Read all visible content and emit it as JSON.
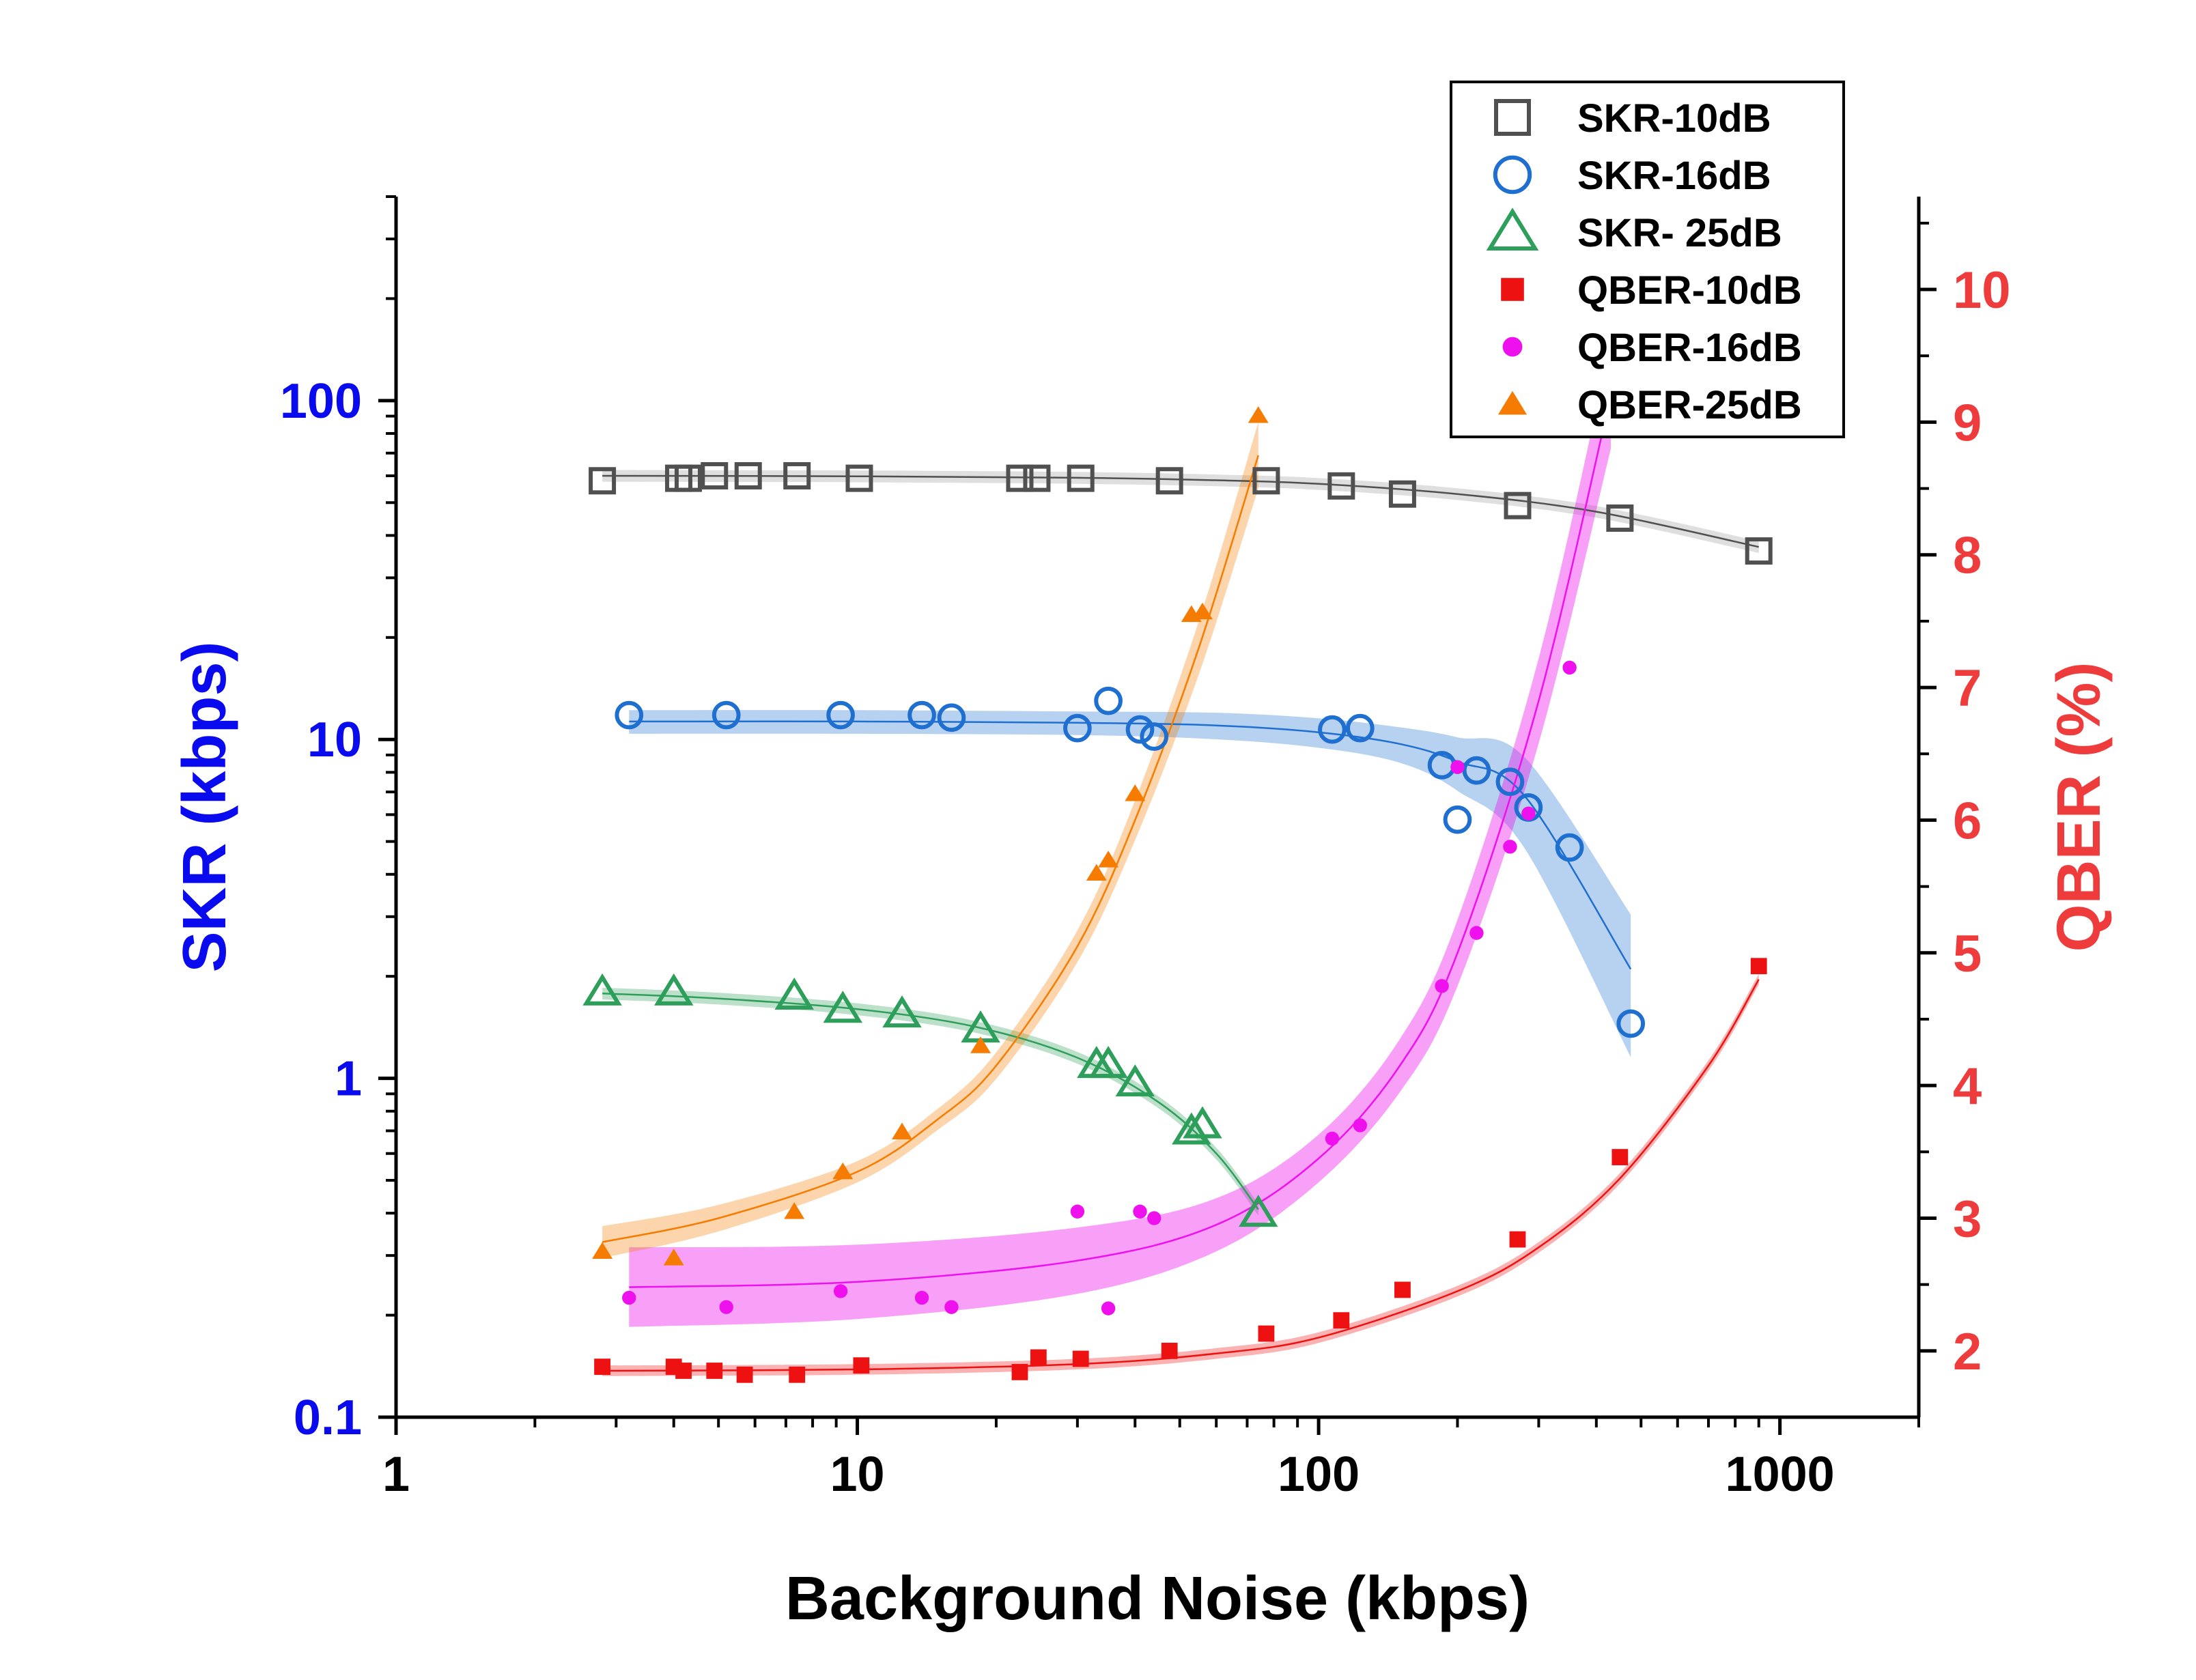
{
  "chart_data": {
    "type": "scatter",
    "xlabel": "Background Noise (kbps)",
    "ylabel_left": "SKR (kbps)",
    "ylabel_right": "QBER (%)",
    "xscale": "log",
    "xlim": [
      1,
      2000
    ],
    "ylim_left": [
      0.1,
      400
    ],
    "yscale_left": "log",
    "ylim_right": [
      1.5,
      10.7
    ],
    "x_ticks": [
      {
        "value": 1,
        "label": "1"
      },
      {
        "value": 10,
        "label": "10"
      },
      {
        "value": 100,
        "label": "100"
      },
      {
        "value": 1000,
        "label": "1000"
      }
    ],
    "y_left_ticks": [
      {
        "value": 0.1,
        "label": "0.1"
      },
      {
        "value": 1,
        "label": "1"
      },
      {
        "value": 10,
        "label": "10"
      },
      {
        "value": 100,
        "label": "100"
      }
    ],
    "y_right_ticks": [
      {
        "value": 2,
        "label": "2"
      },
      {
        "value": 3,
        "label": "3"
      },
      {
        "value": 4,
        "label": "4"
      },
      {
        "value": 5,
        "label": "5"
      },
      {
        "value": 6,
        "label": "6"
      },
      {
        "value": 7,
        "label": "7"
      },
      {
        "value": 8,
        "label": "8"
      },
      {
        "value": 9,
        "label": "9"
      },
      {
        "value": 10,
        "label": "10"
      }
    ],
    "colors": {
      "left_axis": "#0a0aee",
      "right_axis": "#ee3b3b",
      "gray": "#505050",
      "blue": "#1f6fd1",
      "green": "#2e9e5b",
      "red": "#ee1111",
      "magenta": "#ee11ee",
      "orange": "#f57c00"
    },
    "series": [
      {
        "name": "SKR-10dB",
        "axis": "left",
        "marker": "square-open",
        "color": "#505050",
        "band_color": "#9a9a9a",
        "band_rel": 0.04,
        "x": [
          2.8,
          4.1,
          4.3,
          4.9,
          5.8,
          7.4,
          10.1,
          22.5,
          24.5,
          30.5,
          47.5,
          77,
          112,
          152,
          270,
          450,
          900
        ],
        "y": [
          58,
          59,
          59,
          60,
          60,
          60,
          59,
          59,
          59,
          59,
          58,
          58,
          56,
          53,
          49,
          45,
          36
        ],
        "fit_x": [
          2.8,
          10,
          30,
          60,
          100,
          200,
          400,
          900
        ],
        "fit_y": [
          60,
          59.8,
          59.2,
          58.2,
          56.8,
          53,
          47,
          37
        ]
      },
      {
        "name": "SKR-16dB",
        "axis": "left",
        "marker": "circle-open",
        "color": "#1f6fd1",
        "band_color": "#1f6fd1",
        "band_w": [
          0.08,
          0.08,
          0.08,
          0.09,
          0.1,
          0.12,
          0.18,
          0.3,
          0.45
        ],
        "x": [
          3.2,
          5.2,
          9.2,
          13.8,
          16,
          30,
          35,
          41,
          44,
          107,
          123,
          185,
          200,
          220,
          260,
          285,
          350,
          475
        ],
        "y": [
          11.8,
          11.8,
          11.8,
          11.8,
          11.6,
          10.8,
          13,
          10.7,
          10.2,
          10.7,
          10.8,
          8.4,
          5.8,
          8.1,
          7.5,
          6.3,
          4.8,
          1.45
        ],
        "fit_x": [
          3.2,
          10,
          30,
          60,
          100,
          150,
          200,
          280,
          475
        ],
        "fit_y": [
          11.3,
          11.3,
          11.2,
          11,
          10.5,
          9.7,
          8.6,
          6.8,
          2.1
        ]
      },
      {
        "name": "SKR- 25dB",
        "axis": "left",
        "marker": "triangle-open",
        "color": "#2e9e5b",
        "band_color": "#2e9e5b",
        "band_rel": 0.04,
        "x": [
          2.8,
          4.0,
          7.3,
          9.3,
          12.5,
          18.5,
          33,
          35,
          40,
          53,
          56,
          74
        ],
        "y": [
          1.8,
          1.8,
          1.75,
          1.6,
          1.55,
          1.4,
          1.1,
          1.1,
          0.97,
          0.7,
          0.73,
          0.4
        ],
        "fit_x": [
          2.8,
          5,
          10,
          18,
          30,
          45,
          60,
          74
        ],
        "fit_y": [
          1.78,
          1.72,
          1.6,
          1.42,
          1.15,
          0.85,
          0.6,
          0.41
        ]
      },
      {
        "name": "QBER-10dB",
        "axis": "right",
        "marker": "square-filled",
        "color": "#ee1111",
        "band_color": "#ee1111",
        "band_abs": 0.04,
        "x": [
          2.8,
          4.0,
          4.2,
          4.9,
          5.7,
          7.4,
          10.2,
          22.5,
          24.7,
          30.5,
          47.5,
          77,
          112,
          152,
          270,
          450,
          900
        ],
        "y": [
          1.88,
          1.88,
          1.85,
          1.85,
          1.82,
          1.82,
          1.89,
          1.84,
          1.95,
          1.94,
          2.0,
          2.13,
          2.23,
          2.46,
          2.84,
          3.46,
          4.9
        ],
        "fit_x": [
          2.8,
          10,
          30,
          60,
          100,
          200,
          300,
          450,
          700,
          900
        ],
        "fit_y": [
          1.85,
          1.86,
          1.9,
          1.98,
          2.1,
          2.45,
          2.78,
          3.3,
          4.15,
          4.8
        ]
      },
      {
        "name": "QBER-16dB",
        "axis": "right",
        "marker": "circle-filled",
        "color": "#ee11ee",
        "band_color": "#ee11ee",
        "band_w": [
          0.3,
          0.28,
          0.25,
          0.2,
          0.18,
          0.2,
          0.25,
          0.32,
          0.4
        ],
        "x": [
          3.2,
          5.2,
          9.2,
          13.8,
          16,
          30,
          35,
          41,
          44,
          107,
          123,
          185,
          200,
          220,
          260,
          285,
          350
        ],
        "y": [
          2.4,
          2.33,
          2.45,
          2.4,
          2.33,
          3.05,
          2.32,
          3.05,
          3.0,
          3.6,
          3.7,
          4.75,
          6.4,
          5.15,
          5.8,
          6.05,
          7.15
        ],
        "fit_x": [
          3.2,
          10,
          30,
          60,
          100,
          150,
          200,
          300,
          430
        ],
        "fit_y": [
          2.48,
          2.52,
          2.68,
          2.95,
          3.45,
          4.15,
          5.0,
          6.9,
          9.2
        ]
      },
      {
        "name": "QBER-25dB",
        "axis": "right",
        "marker": "triangle-filled",
        "color": "#f57c00",
        "band_color": "#f57c00",
        "band_w": [
          0.12,
          0.1,
          0.08,
          0.08,
          0.1,
          0.12,
          0.15,
          0.2,
          0.25
        ],
        "x": [
          2.8,
          4.0,
          7.3,
          9.3,
          12.5,
          18.5,
          33,
          35,
          40,
          53,
          56,
          74
        ],
        "y": [
          2.75,
          2.7,
          3.05,
          3.35,
          3.65,
          4.3,
          5.6,
          5.7,
          6.2,
          7.55,
          7.57,
          9.05
        ],
        "fit_x": [
          2.8,
          5,
          10,
          15,
          20,
          30,
          40,
          55,
          74
        ],
        "fit_y": [
          2.82,
          3.0,
          3.35,
          3.75,
          4.15,
          5.05,
          6.0,
          7.3,
          8.75
        ]
      }
    ]
  },
  "legend": {
    "items": [
      {
        "label": "SKR-10dB"
      },
      {
        "label": "SKR-16dB"
      },
      {
        "label": "SKR- 25dB"
      },
      {
        "label": "QBER-10dB"
      },
      {
        "label": "QBER-16dB"
      },
      {
        "label": "QBER-25dB"
      }
    ]
  }
}
